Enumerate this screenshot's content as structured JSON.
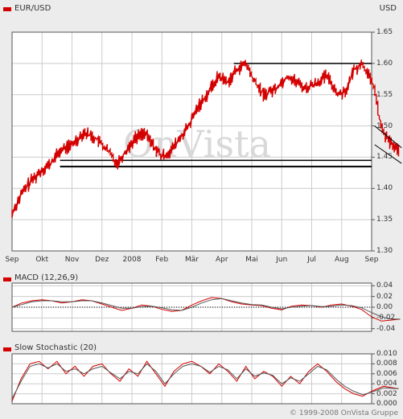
{
  "colors": {
    "series": "#d40000",
    "frame": "#555555",
    "grid": "#cccccc",
    "panel": "#ffffff",
    "background": "#ececec",
    "trendline": "#000000"
  },
  "copyright": "© 1999-2008 OnVista Gruppe",
  "watermark": "OnVista",
  "chart_data": [
    {
      "type": "line",
      "title": "EUR/USD",
      "ylabel": "USD",
      "ylim": [
        1.3,
        1.65
      ],
      "yticks": [
        "1.65",
        "1.60",
        "1.55",
        "1.50",
        "1.45",
        "1.40",
        "1.35",
        "1.30"
      ],
      "ytick_values": [
        1.65,
        1.6,
        1.55,
        1.5,
        1.45,
        1.4,
        1.35,
        1.3
      ],
      "categories": [
        "Sep",
        "Okt",
        "Nov",
        "Dez",
        "2008",
        "Feb",
        "Mär",
        "Apr",
        "Mai",
        "Jun",
        "Jul",
        "Aug",
        "Sep"
      ],
      "grid": true,
      "series": [
        {
          "values": [
            1.36,
            1.39,
            1.41,
            1.42,
            1.43,
            1.44,
            1.46,
            1.47,
            1.49,
            1.48,
            1.46,
            1.44,
            1.46,
            1.48,
            1.49,
            1.47,
            1.45,
            1.46,
            1.48,
            1.5,
            1.53,
            1.55,
            1.58,
            1.57,
            1.59,
            1.6,
            1.57,
            1.55,
            1.56,
            1.58,
            1.57,
            1.56,
            1.57,
            1.58,
            1.55,
            1.56,
            1.59,
            1.6,
            1.58,
            1.56,
            1.5,
            1.48,
            1.47,
            1.46
          ]
        }
      ],
      "x": [
        0,
        0.3,
        0.6,
        0.8,
        1.0,
        1.3,
        1.6,
        2.0,
        2.4,
        2.8,
        3.2,
        3.5,
        3.8,
        4.1,
        4.4,
        4.7,
        5.0,
        5.3,
        5.6,
        5.9,
        6.2,
        6.5,
        6.9,
        7.2,
        7.5,
        7.8,
        8.1,
        8.4,
        8.8,
        9.2,
        9.5,
        9.8,
        10.2,
        10.5,
        10.9,
        11.2,
        11.4,
        11.7,
        11.9,
        12.1,
        12.3,
        12.5,
        12.7,
        12.9
      ],
      "horizontal_levels": [
        1.6,
        1.435,
        1.445
      ]
    },
    {
      "type": "line",
      "title": "MACD (12,26,9)",
      "ylim": [
        -0.045,
        0.045
      ],
      "yticks": [
        "0.04",
        "0.02",
        "0.00",
        "-0.02",
        "-0.04"
      ],
      "ytick_values": [
        0.04,
        0.02,
        0.0,
        -0.02,
        -0.04
      ],
      "series": [
        {
          "values": [
            0.0,
            0.008,
            0.012,
            0.014,
            0.012,
            0.008,
            0.01,
            0.014,
            0.012,
            0.006,
            0.0,
            -0.006,
            -0.002,
            0.004,
            0.002,
            -0.004,
            -0.008,
            -0.006,
            0.004,
            0.012,
            0.018,
            0.016,
            0.01,
            0.006,
            0.004,
            0.003,
            -0.002,
            -0.005,
            0.002,
            0.004,
            0.003,
            0.0,
            0.004,
            0.006,
            0.002,
            -0.004,
            -0.018,
            -0.026,
            -0.024,
            -0.022
          ]
        },
        {
          "values": [
            0.0,
            0.005,
            0.01,
            0.012,
            0.012,
            0.01,
            0.01,
            0.012,
            0.012,
            0.008,
            0.003,
            -0.002,
            -0.002,
            0.001,
            0.002,
            -0.001,
            -0.005,
            -0.006,
            0.0,
            0.008,
            0.014,
            0.016,
            0.012,
            0.008,
            0.005,
            0.004,
            0.0,
            -0.003,
            0.0,
            0.002,
            0.003,
            0.001,
            0.002,
            0.004,
            0.003,
            -0.001,
            -0.01,
            -0.018,
            -0.022,
            -0.022
          ]
        }
      ],
      "x": [
        0,
        0.33,
        0.66,
        1.0,
        1.33,
        1.66,
        2.0,
        2.33,
        2.66,
        3.0,
        3.33,
        3.66,
        4.0,
        4.33,
        4.66,
        5.0,
        5.33,
        5.66,
        6.0,
        6.33,
        6.66,
        7.0,
        7.33,
        7.66,
        8.0,
        8.33,
        8.66,
        9.0,
        9.33,
        9.66,
        10.0,
        10.33,
        10.66,
        11.0,
        11.33,
        11.66,
        12.0,
        12.33,
        12.66,
        12.95
      ]
    },
    {
      "type": "line",
      "title": "Slow Stochastic (20)",
      "ylim": [
        0.0,
        0.01
      ],
      "yticks": [
        "0.010",
        "0.008",
        "0.006",
        "0.004",
        "0.002",
        "0.000"
      ],
      "ytick_values": [
        0.01,
        0.008,
        0.006,
        0.004,
        0.002,
        0.0
      ],
      "series": [
        {
          "values": [
            0.0005,
            0.005,
            0.008,
            0.0085,
            0.007,
            0.0085,
            0.006,
            0.0075,
            0.0055,
            0.0075,
            0.008,
            0.006,
            0.0045,
            0.007,
            0.0055,
            0.0085,
            0.006,
            0.0035,
            0.0065,
            0.008,
            0.0085,
            0.0075,
            0.006,
            0.008,
            0.0065,
            0.0045,
            0.0075,
            0.005,
            0.0065,
            0.0055,
            0.0035,
            0.0055,
            0.004,
            0.0065,
            0.008,
            0.0065,
            0.0045,
            0.003,
            0.002,
            0.0015,
            0.0025,
            0.0035,
            0.003
          ]
        },
        {
          "values": [
            0.001,
            0.0045,
            0.0075,
            0.008,
            0.0072,
            0.008,
            0.0065,
            0.007,
            0.006,
            0.007,
            0.0075,
            0.0062,
            0.005,
            0.0065,
            0.006,
            0.008,
            0.0065,
            0.004,
            0.006,
            0.0075,
            0.008,
            0.0075,
            0.0063,
            0.0075,
            0.0068,
            0.005,
            0.007,
            0.0055,
            0.0062,
            0.0057,
            0.004,
            0.0052,
            0.0045,
            0.006,
            0.0075,
            0.0068,
            0.005,
            0.0035,
            0.0025,
            0.0018,
            0.0023,
            0.0032,
            0.003
          ]
        }
      ],
      "x": [
        0,
        0.3,
        0.6,
        0.9,
        1.2,
        1.5,
        1.8,
        2.1,
        2.4,
        2.7,
        3.0,
        3.3,
        3.6,
        3.9,
        4.2,
        4.5,
        4.8,
        5.1,
        5.4,
        5.7,
        6.0,
        6.3,
        6.6,
        6.9,
        7.2,
        7.5,
        7.8,
        8.1,
        8.4,
        8.7,
        9.0,
        9.3,
        9.6,
        9.9,
        10.2,
        10.5,
        10.8,
        11.1,
        11.4,
        11.7,
        12.0,
        12.4,
        12.9
      ]
    }
  ]
}
